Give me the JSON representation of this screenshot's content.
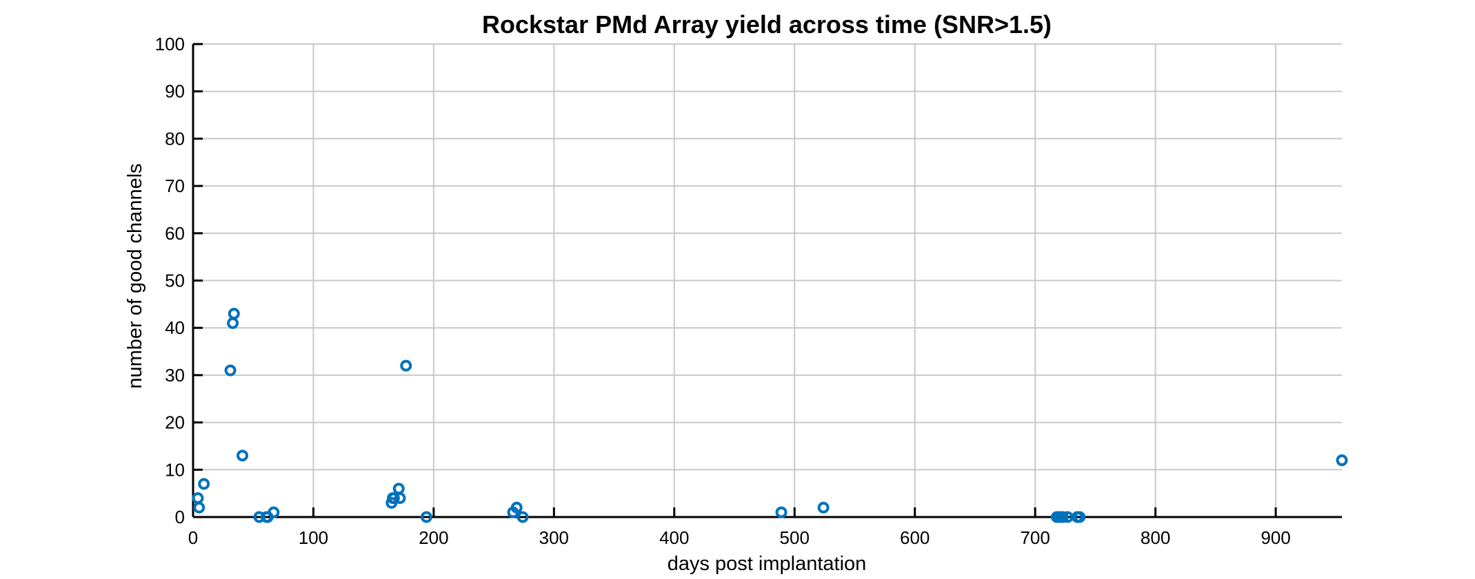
{
  "chart_data": {
    "type": "scatter",
    "title": "Rockstar PMd Array yield across time (SNR>1.5)",
    "xlabel": "days post implantation",
    "ylabel": "number of good channels",
    "xlim": [
      0,
      955
    ],
    "ylim": [
      0,
      100
    ],
    "xticks": [
      0,
      100,
      200,
      300,
      400,
      500,
      600,
      700,
      800,
      900
    ],
    "yticks": [
      0,
      10,
      20,
      30,
      40,
      50,
      60,
      70,
      80,
      90,
      100
    ],
    "grid": true,
    "marker": "open-circle",
    "color": "#0072BD",
    "points": [
      {
        "x": 4,
        "y": 4
      },
      {
        "x": 5,
        "y": 2
      },
      {
        "x": 9,
        "y": 7
      },
      {
        "x": 31,
        "y": 31
      },
      {
        "x": 33,
        "y": 41
      },
      {
        "x": 34,
        "y": 43
      },
      {
        "x": 41,
        "y": 13
      },
      {
        "x": 55,
        "y": 0
      },
      {
        "x": 61,
        "y": 0
      },
      {
        "x": 62,
        "y": 0
      },
      {
        "x": 67,
        "y": 1
      },
      {
        "x": 165,
        "y": 3
      },
      {
        "x": 166,
        "y": 4
      },
      {
        "x": 167,
        "y": 4
      },
      {
        "x": 171,
        "y": 6
      },
      {
        "x": 172,
        "y": 4
      },
      {
        "x": 177,
        "y": 32
      },
      {
        "x": 194,
        "y": 0
      },
      {
        "x": 266,
        "y": 1
      },
      {
        "x": 269,
        "y": 2
      },
      {
        "x": 274,
        "y": 0
      },
      {
        "x": 489,
        "y": 1
      },
      {
        "x": 524,
        "y": 2
      },
      {
        "x": 718,
        "y": 0
      },
      {
        "x": 720,
        "y": 0
      },
      {
        "x": 722,
        "y": 0
      },
      {
        "x": 723,
        "y": 0
      },
      {
        "x": 727,
        "y": 0
      },
      {
        "x": 735,
        "y": 0
      },
      {
        "x": 737,
        "y": 0
      },
      {
        "x": 955,
        "y": 12
      }
    ]
  }
}
